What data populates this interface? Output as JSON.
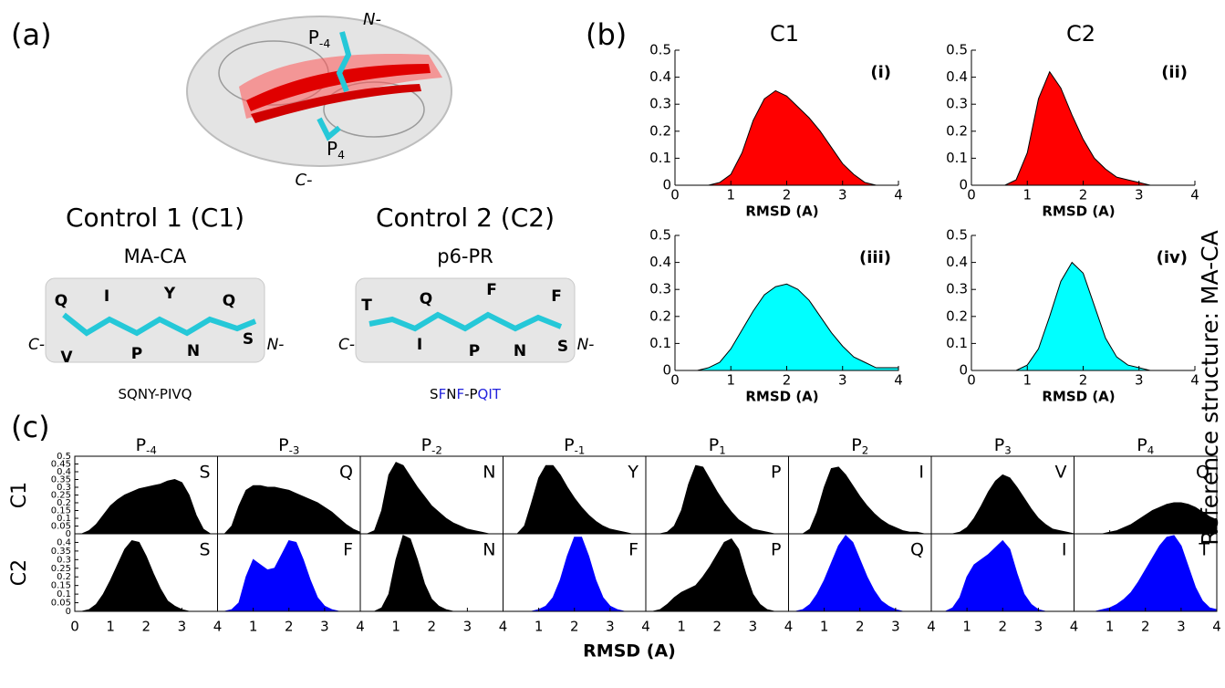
{
  "panel_labels": [
    "(a)",
    "(b)",
    "(c)"
  ],
  "side_title": "Reference structure: MA-CA",
  "panel_a": {
    "p_minus4": {
      "main": "P",
      "sub": "-4"
    },
    "n_term": "N-",
    "p4": {
      "main": "P",
      "sub": "4"
    },
    "c_term": "C-",
    "controls": [
      {
        "title": "Control 1 (C1)",
        "subtitle": "MA-CA",
        "c_term": "C-",
        "n_term": "N-",
        "residues": [
          {
            "text": "Q",
            "color": "#000000"
          },
          {
            "text": "I",
            "color": "#000000"
          },
          {
            "text": "Y",
            "color": "#000000"
          },
          {
            "text": "Q",
            "color": "#000000"
          },
          {
            "text": "V",
            "color": "#000000"
          },
          {
            "text": "P",
            "color": "#000000"
          },
          {
            "text": "N",
            "color": "#000000"
          },
          {
            "text": "S",
            "color": "#000000"
          }
        ],
        "sequence": "SQNY-PIVQ",
        "sequence_colors": [
          "#000000",
          "#000000",
          "#000000",
          "#000000",
          "#000000",
          "#000000",
          "#000000",
          "#000000",
          "#000000"
        ]
      },
      {
        "title": "Control 2 (C2)",
        "subtitle": "p6-PR",
        "c_term": "C-",
        "n_term": "N-",
        "residues": [
          {
            "text": "T",
            "color": "#2222dd"
          },
          {
            "text": "Q",
            "color": "#2222dd"
          },
          {
            "text": "F",
            "color": "#2222dd"
          },
          {
            "text": "F",
            "color": "#2222dd"
          },
          {
            "text": "I",
            "color": "#2222dd"
          },
          {
            "text": "P",
            "color": "#000000"
          },
          {
            "text": "N",
            "color": "#000000"
          },
          {
            "text": "S",
            "color": "#000000"
          }
        ],
        "sequence": "SFNF-PQIT",
        "sequence_colors": [
          "#000000",
          "#2222dd",
          "#000000",
          "#2222dd",
          "#000000",
          "#000000",
          "#2222dd",
          "#2222dd",
          "#2222dd"
        ]
      }
    ]
  },
  "chart_data": [
    {
      "type": "area",
      "column_titles": [
        "C1",
        "C2"
      ],
      "xlabel": "RMSD (A)",
      "xlim": [
        0,
        4
      ],
      "xticks": [
        0,
        1,
        2,
        3,
        4
      ],
      "ylim": [
        0,
        0.5
      ],
      "yticks": [
        0,
        0.1,
        0.2,
        0.3,
        0.4,
        0.5
      ],
      "x": [
        0,
        0.2,
        0.4,
        0.6,
        0.8,
        1.0,
        1.2,
        1.4,
        1.6,
        1.8,
        2.0,
        2.2,
        2.4,
        2.6,
        2.8,
        3.0,
        3.2,
        3.4,
        3.6,
        3.8,
        4.0
      ],
      "series": [
        {
          "name": "(i)",
          "color": "#ff0000",
          "values": [
            0,
            0,
            0,
            0,
            0.01,
            0.04,
            0.12,
            0.24,
            0.32,
            0.35,
            0.33,
            0.29,
            0.25,
            0.2,
            0.14,
            0.08,
            0.04,
            0.01,
            0,
            0,
            0
          ]
        },
        {
          "name": "(ii)",
          "color": "#ff0000",
          "values": [
            0,
            0,
            0,
            0,
            0.02,
            0.12,
            0.32,
            0.42,
            0.36,
            0.26,
            0.17,
            0.1,
            0.06,
            0.03,
            0.02,
            0.01,
            0,
            0,
            0,
            0,
            0
          ]
        },
        {
          "name": "(iii)",
          "color": "#00ffff",
          "values": [
            0,
            0,
            0,
            0.01,
            0.03,
            0.08,
            0.15,
            0.22,
            0.28,
            0.31,
            0.32,
            0.3,
            0.26,
            0.2,
            0.14,
            0.09,
            0.05,
            0.03,
            0.01,
            0.01,
            0.01
          ]
        },
        {
          "name": "(iv)",
          "color": "#00ffff",
          "values": [
            0,
            0,
            0,
            0,
            0,
            0.02,
            0.08,
            0.2,
            0.33,
            0.4,
            0.36,
            0.24,
            0.12,
            0.05,
            0.02,
            0.01,
            0,
            0,
            0,
            0,
            0
          ]
        }
      ]
    },
    {
      "type": "area",
      "column_titles": [
        {
          "main": "P",
          "sub": "-4"
        },
        {
          "main": "P",
          "sub": "-3"
        },
        {
          "main": "P",
          "sub": "-2"
        },
        {
          "main": "P",
          "sub": "-1"
        },
        {
          "main": "P",
          "sub": "1"
        },
        {
          "main": "P",
          "sub": "2"
        },
        {
          "main": "P",
          "sub": "3"
        },
        {
          "main": "P",
          "sub": "4"
        }
      ],
      "row_labels": [
        "C1",
        "C2"
      ],
      "xlabel": "RMSD (A)",
      "xlim": [
        0,
        4
      ],
      "xticks": [
        0,
        1,
        2,
        3,
        4
      ],
      "x": [
        0,
        0.2,
        0.4,
        0.6,
        0.8,
        1.0,
        1.2,
        1.4,
        1.6,
        1.8,
        2.0,
        2.2,
        2.4,
        2.6,
        2.8,
        3.0,
        3.2,
        3.4,
        3.6,
        3.8,
        4.0
      ],
      "rows": [
        {
          "ylim": [
            0,
            0.5
          ],
          "yticks": [
            0,
            0.05,
            0.1,
            0.15,
            0.2,
            0.25,
            0.3,
            0.35,
            0.4,
            0.45,
            0.5
          ],
          "series": [
            {
              "name": "S",
              "color": "#000000",
              "values": [
                0,
                0,
                0.02,
                0.06,
                0.12,
                0.18,
                0.22,
                0.25,
                0.27,
                0.29,
                0.3,
                0.31,
                0.32,
                0.34,
                0.35,
                0.33,
                0.25,
                0.12,
                0.03,
                0,
                0
              ]
            },
            {
              "name": "Q",
              "color": "#000000",
              "values": [
                0,
                0,
                0.05,
                0.18,
                0.28,
                0.31,
                0.31,
                0.3,
                0.3,
                0.29,
                0.28,
                0.26,
                0.24,
                0.22,
                0.2,
                0.17,
                0.14,
                0.1,
                0.06,
                0.03,
                0.01
              ]
            },
            {
              "name": "N",
              "color": "#000000",
              "values": [
                0,
                0,
                0.02,
                0.15,
                0.38,
                0.46,
                0.44,
                0.37,
                0.3,
                0.24,
                0.18,
                0.14,
                0.1,
                0.07,
                0.05,
                0.03,
                0.02,
                0.01,
                0,
                0,
                0
              ]
            },
            {
              "name": "Y",
              "color": "#000000",
              "values": [
                0,
                0,
                0,
                0.05,
                0.2,
                0.36,
                0.44,
                0.44,
                0.38,
                0.3,
                0.23,
                0.17,
                0.12,
                0.08,
                0.05,
                0.03,
                0.02,
                0.01,
                0,
                0,
                0
              ]
            },
            {
              "name": "P",
              "color": "#000000",
              "values": [
                0,
                0,
                0,
                0.01,
                0.05,
                0.15,
                0.32,
                0.44,
                0.43,
                0.35,
                0.27,
                0.2,
                0.14,
                0.09,
                0.06,
                0.03,
                0.02,
                0.01,
                0,
                0,
                0
              ]
            },
            {
              "name": "I",
              "color": "#000000",
              "values": [
                0,
                0,
                0,
                0.03,
                0.14,
                0.3,
                0.42,
                0.43,
                0.38,
                0.31,
                0.24,
                0.18,
                0.13,
                0.09,
                0.06,
                0.04,
                0.02,
                0.01,
                0.01,
                0,
                0
              ]
            },
            {
              "name": "V",
              "color": "#000000",
              "values": [
                0,
                0,
                0,
                0,
                0.01,
                0.04,
                0.1,
                0.18,
                0.27,
                0.34,
                0.38,
                0.36,
                0.3,
                0.23,
                0.16,
                0.1,
                0.06,
                0.03,
                0.02,
                0.01,
                0
              ]
            },
            {
              "name": "Q",
              "color": "#000000",
              "values": [
                0,
                0,
                0,
                0,
                0,
                0.01,
                0.02,
                0.04,
                0.06,
                0.09,
                0.12,
                0.15,
                0.17,
                0.19,
                0.2,
                0.2,
                0.19,
                0.17,
                0.14,
                0.11,
                0.09
              ]
            }
          ]
        },
        {
          "ylim": [
            0,
            0.45
          ],
          "yticks": [
            0,
            0.05,
            0.1,
            0.15,
            0.2,
            0.25,
            0.3,
            0.35,
            0.4
          ],
          "series": [
            {
              "name": "S",
              "color": "#000000",
              "values": [
                0,
                0,
                0.01,
                0.04,
                0.1,
                0.18,
                0.27,
                0.36,
                0.41,
                0.4,
                0.32,
                0.22,
                0.13,
                0.06,
                0.03,
                0.01,
                0,
                0,
                0,
                0,
                0
              ]
            },
            {
              "name": "F",
              "color": "#0000ff",
              "values": [
                0,
                0,
                0.01,
                0.05,
                0.2,
                0.3,
                0.27,
                0.24,
                0.25,
                0.33,
                0.41,
                0.4,
                0.3,
                0.18,
                0.08,
                0.03,
                0.01,
                0,
                0,
                0,
                0
              ]
            },
            {
              "name": "N",
              "color": "#000000",
              "values": [
                0,
                0,
                0,
                0.02,
                0.1,
                0.3,
                0.44,
                0.42,
                0.3,
                0.16,
                0.07,
                0.03,
                0.01,
                0,
                0,
                0,
                0,
                0,
                0,
                0,
                0
              ]
            },
            {
              "name": "F",
              "color": "#0000ff",
              "values": [
                0,
                0,
                0,
                0,
                0,
                0.01,
                0.03,
                0.08,
                0.18,
                0.32,
                0.43,
                0.43,
                0.32,
                0.18,
                0.08,
                0.03,
                0.01,
                0,
                0,
                0,
                0
              ]
            },
            {
              "name": "P",
              "color": "#000000",
              "values": [
                0,
                0,
                0.01,
                0.04,
                0.08,
                0.11,
                0.13,
                0.15,
                0.2,
                0.26,
                0.33,
                0.4,
                0.42,
                0.36,
                0.22,
                0.1,
                0.04,
                0.01,
                0,
                0,
                0
              ]
            },
            {
              "name": "Q",
              "color": "#0000ff",
              "values": [
                0,
                0,
                0.01,
                0.04,
                0.1,
                0.18,
                0.28,
                0.38,
                0.44,
                0.4,
                0.3,
                0.2,
                0.12,
                0.06,
                0.03,
                0.01,
                0,
                0,
                0,
                0,
                0
              ]
            },
            {
              "name": "I",
              "color": "#0000ff",
              "values": [
                0,
                0,
                0,
                0.02,
                0.08,
                0.2,
                0.27,
                0.3,
                0.33,
                0.37,
                0.41,
                0.36,
                0.22,
                0.1,
                0.04,
                0.01,
                0,
                0,
                0,
                0,
                0
              ]
            },
            {
              "name": "T",
              "color": "#0000ff",
              "values": [
                0,
                0,
                0,
                0,
                0.01,
                0.02,
                0.04,
                0.07,
                0.11,
                0.17,
                0.24,
                0.31,
                0.38,
                0.43,
                0.44,
                0.38,
                0.26,
                0.14,
                0.06,
                0.02,
                0.01
              ]
            }
          ]
        }
      ]
    }
  ]
}
